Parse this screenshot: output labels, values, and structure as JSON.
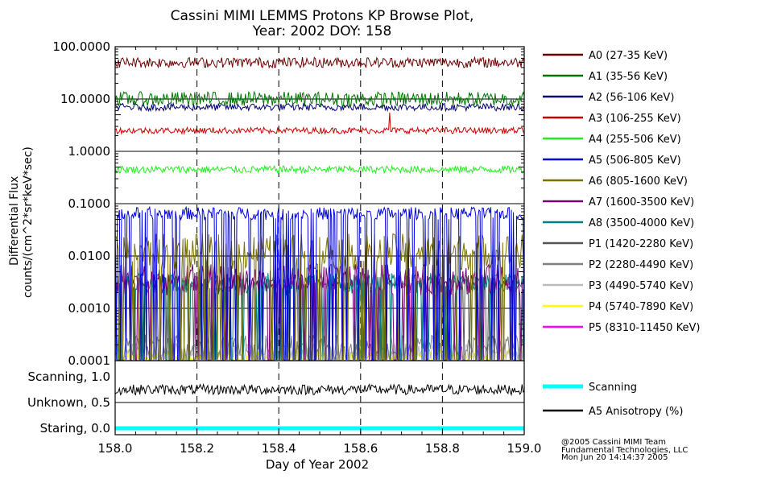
{
  "title": {
    "line1": "Cassini MIMI LEMMS Protons KP Browse Plot,",
    "line2": "Year: 2002 DOY: 158"
  },
  "credits": {
    "line1": "@2005 Cassini MIMI Team",
    "line2": "Fundamental Technologies, LLC",
    "line3": "Mon Jun 20 14:14:37 2005"
  },
  "colors": {
    "A0": "#6b0000",
    "A1": "#007400",
    "A2": "#00006e",
    "A3": "#cc0000",
    "A4": "#22ee22",
    "A5": "#0000dd",
    "A6": "#7a7200",
    "A7": "#7a0078",
    "A8": "#00807e",
    "P1": "#555555",
    "P2": "#808080",
    "P3": "#bbbbbb",
    "P4": "#ffff00",
    "P5": "#ff00ff",
    "scanning": "#00ffff",
    "anisotropy": "#000000"
  },
  "chart_data": [
    {
      "type": "line",
      "panel": "flux",
      "title": "Cassini MIMI LEMMS Protons KP Browse Plot, Year: 2002 DOY: 158",
      "ylabel_line1": "Differential Flux",
      "ylabel_line2": "counts/(cm^2*sr*keV*sec)",
      "yscale": "log",
      "ylim": [
        0.0001,
        100
      ],
      "yticks": [
        "100.0000",
        "10.0000",
        "1.0000",
        "0.1000",
        "0.0100",
        "0.0010",
        "0.0001"
      ],
      "xlim": [
        158.0,
        159.0
      ],
      "legend_position": "right",
      "series": [
        {
          "id": "A0",
          "name": "A0 (27-35 KeV)",
          "level": 50,
          "noise": 0.1,
          "dropouts": false
        },
        {
          "id": "A1",
          "name": "A1 (35-56 KeV)",
          "level": 10,
          "noise": 0.14,
          "dropouts": false
        },
        {
          "id": "A2",
          "name": "A2 (56-106 KeV)",
          "level": 7,
          "noise": 0.07,
          "dropouts": false
        },
        {
          "id": "A3",
          "name": "A3 (106-255 KeV)",
          "level": 2.5,
          "noise": 0.06,
          "dropouts": false
        },
        {
          "id": "A4",
          "name": "A4 (255-506 KeV)",
          "level": 0.45,
          "noise": 0.07,
          "dropouts": false
        },
        {
          "id": "A5",
          "name": "A5 (506-805 KeV)",
          "level": 0.065,
          "noise": 0.12,
          "dropouts": true
        },
        {
          "id": "A6",
          "name": "A6 (805-1600 KeV)",
          "level": 0.012,
          "noise": 0.35,
          "dropouts": true
        },
        {
          "id": "A7",
          "name": "A7 (1600-3500 KeV)",
          "level": 0.0035,
          "noise": 0.3,
          "dropouts": true
        },
        {
          "id": "A8",
          "name": "A8 (3500-4000 KeV)",
          "level": 0.003,
          "noise": 0.2,
          "dropouts": true
        },
        {
          "id": "P1",
          "name": "P1 (1420-2280 KeV)",
          "level": 0.003,
          "noise": 0.15,
          "dropouts": true
        },
        {
          "id": "P2",
          "name": "P2 (2280-4490 KeV)",
          "level": 0.0002,
          "noise": 0.2,
          "dropouts": true
        },
        {
          "id": "P3",
          "name": "P3 (4490-5740 KeV)",
          "level": 0.00015,
          "noise": 0.15,
          "dropouts": true
        },
        {
          "id": "P4",
          "name": "P4 (5740-7890 KeV)",
          "level": 0.00012,
          "noise": 0.12,
          "dropouts": true
        },
        {
          "id": "P5",
          "name": "P5 (8310-11450 KeV)",
          "level": null,
          "noise": 0,
          "dropouts": false
        }
      ]
    },
    {
      "type": "line",
      "panel": "scan",
      "ylim": [
        0.0,
        1.0
      ],
      "yticks": [
        {
          "label": "Scanning, 1.0",
          "value": 1.0
        },
        {
          "label": "Unknown, 0.5",
          "value": 0.5
        },
        {
          "label": "Staring, 0.0",
          "value": 0.0
        }
      ],
      "xlabel": "Day of Year 2002",
      "xlim": [
        158.0,
        159.0
      ],
      "xticks": [
        "158.0",
        "158.2",
        "158.4",
        "158.6",
        "158.8",
        "159.0"
      ],
      "series": [
        {
          "id": "scanning",
          "name": "Scanning",
          "value": 0.0
        },
        {
          "id": "anisotropy",
          "name": "A5 Anisotropy (%)",
          "level": 0.75,
          "noise": 0.1
        }
      ]
    }
  ]
}
